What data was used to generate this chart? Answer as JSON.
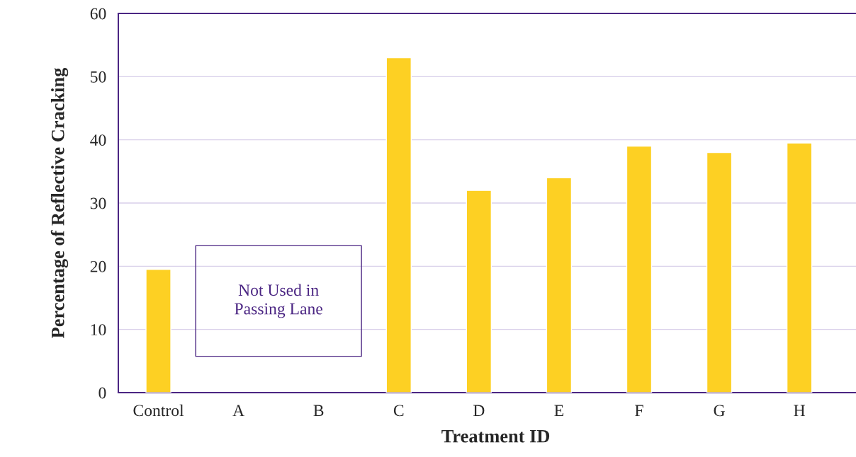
{
  "chart_data": {
    "type": "bar",
    "xlabel": "Treatment ID",
    "ylabel": "Percentage of Reflective Cracking",
    "categories": [
      "Control",
      "A",
      "B",
      "C",
      "D",
      "E",
      "F",
      "G",
      "H"
    ],
    "values": [
      19.5,
      null,
      null,
      53,
      32,
      34,
      39,
      38,
      39.5
    ],
    "color": "#fdd023",
    "ylim": [
      0,
      60
    ],
    "yticks": [
      0,
      10,
      20,
      30,
      40,
      50,
      60
    ],
    "grid": "y",
    "annotations": [
      "Not Used in\nPassing Lane"
    ]
  }
}
